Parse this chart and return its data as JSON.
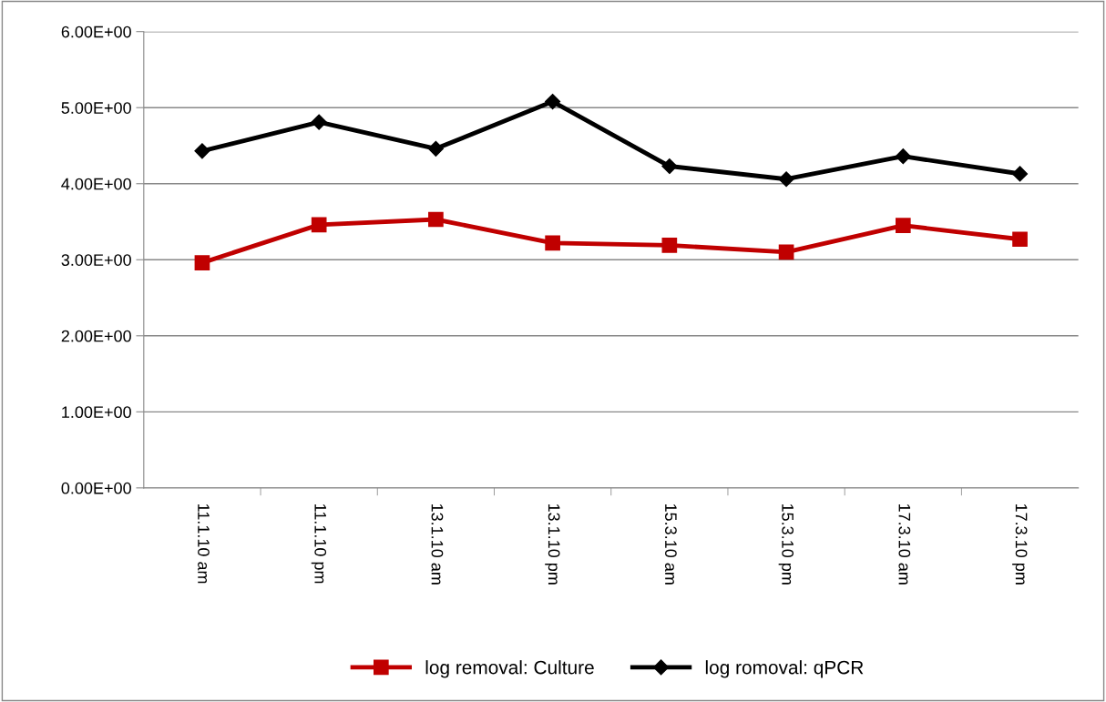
{
  "chart_data": {
    "type": "line",
    "categories": [
      "11.1.10 am",
      "11.1.10 pm",
      "13.1.10 am",
      "13.1.10 pm",
      "15.3.10 am",
      "15.3.10 pm",
      "17.3.10 am",
      "17.3.10 pm"
    ],
    "series": [
      {
        "name": "log removal: Culture",
        "color": "#c00000",
        "marker": "square",
        "values": [
          2.96,
          3.46,
          3.53,
          3.22,
          3.19,
          3.1,
          3.45,
          3.27
        ]
      },
      {
        "name": "log romoval: qPCR",
        "color": "#000000",
        "marker": "diamond",
        "values": [
          4.43,
          4.81,
          4.46,
          5.08,
          4.23,
          4.06,
          4.36,
          4.13
        ]
      }
    ],
    "ylim": [
      0,
      6
    ],
    "yticks": [
      {
        "value": 0,
        "label": "0.00E+00"
      },
      {
        "value": 1,
        "label": "1.00E+00"
      },
      {
        "value": 2,
        "label": "2.00E+00"
      },
      {
        "value": 3,
        "label": "3.00E+00"
      },
      {
        "value": 4,
        "label": "4.00E+00"
      },
      {
        "value": 5,
        "label": "5.00E+00"
      },
      {
        "value": 6,
        "label": "6.00E+00"
      }
    ],
    "grid": "y",
    "legend": "bottom",
    "line_style": "solid"
  }
}
